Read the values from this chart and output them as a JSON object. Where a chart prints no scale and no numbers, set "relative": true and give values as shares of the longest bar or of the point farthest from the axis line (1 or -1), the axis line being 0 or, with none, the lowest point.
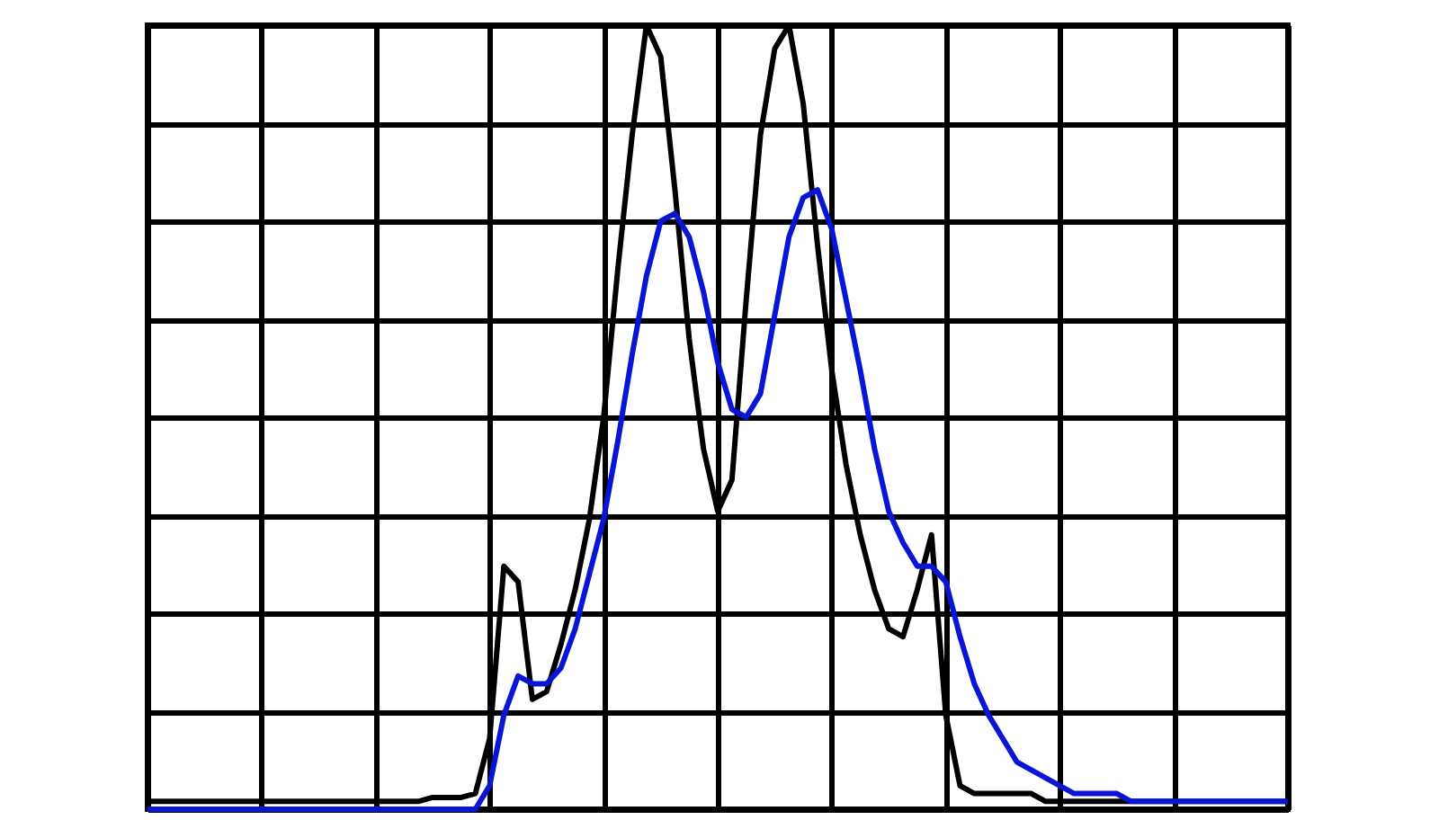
{
  "chart_data": {
    "type": "line",
    "relative": true,
    "grid": true,
    "categories": [
      null,
      null,
      null,
      null,
      null,
      null,
      null,
      null,
      null,
      null,
      null,
      null,
      null,
      null,
      null,
      null,
      null,
      null,
      null,
      null,
      null,
      null,
      null,
      null,
      null,
      null,
      null,
      null,
      null,
      null,
      null,
      null,
      null,
      null,
      null,
      null,
      null,
      null,
      null,
      null,
      null,
      null,
      null,
      null,
      null,
      null,
      null,
      null,
      null,
      null,
      null,
      null,
      null,
      null,
      null,
      null,
      null,
      null,
      null,
      null,
      null,
      null,
      null,
      null,
      null,
      null,
      null,
      null,
      null,
      null,
      null,
      null,
      null,
      null,
      null,
      null,
      null,
      null,
      null,
      null,
      null
    ],
    "series": [
      {
        "color": "#000000",
        "values": [
          0.01,
          0.01,
          0.01,
          0.01,
          0.01,
          0.01,
          0.01,
          0.01,
          0.01,
          0.01,
          0.01,
          0.01,
          0.01,
          0.01,
          0.01,
          0.01,
          0.01,
          0.01,
          0.01,
          0.01,
          0.015,
          0.015,
          0.015,
          0.02,
          0.09,
          0.31,
          0.29,
          0.14,
          0.15,
          0.21,
          0.28,
          0.37,
          0.5,
          0.69,
          0.86,
          1,
          0.96,
          0.79,
          0.6,
          0.46,
          0.38,
          0.42,
          0.65,
          0.86,
          0.97,
          1,
          0.9,
          0.72,
          0.56,
          0.44,
          0.35,
          0.28,
          0.23,
          0.22,
          0.28,
          0.35,
          0.12,
          0.03,
          0.02,
          0.02,
          0.02,
          0.02,
          0.02,
          0.01,
          0.01,
          0.01,
          0.01,
          0.01,
          0.01,
          0.01,
          0.01,
          0.01,
          0.01,
          0.01,
          0.01,
          0.01,
          0.01,
          0.01,
          0.01,
          0.01,
          0.01
        ]
      },
      {
        "color": "#0a14d4",
        "values": [
          0,
          0,
          0,
          0,
          0,
          0,
          0,
          0,
          0,
          0,
          0,
          0,
          0,
          0,
          0,
          0,
          0,
          0,
          0,
          0,
          0,
          0,
          0,
          0,
          0.03,
          0.12,
          0.17,
          0.16,
          0.16,
          0.18,
          0.23,
          0.3,
          0.37,
          0.47,
          0.58,
          0.68,
          0.75,
          0.76,
          0.73,
          0.66,
          0.57,
          0.51,
          0.5,
          0.53,
          0.63,
          0.73,
          0.78,
          0.79,
          0.74,
          0.65,
          0.56,
          0.46,
          0.38,
          0.34,
          0.31,
          0.31,
          0.29,
          0.22,
          0.16,
          0.12,
          0.09,
          0.06,
          0.05,
          0.04,
          0.03,
          0.02,
          0.02,
          0.02,
          0.02,
          0.01,
          0.01,
          0.01,
          0.01,
          0.01,
          0.01,
          0.01,
          0.01,
          0.01,
          0.01,
          0.01,
          0.01
        ]
      }
    ]
  }
}
